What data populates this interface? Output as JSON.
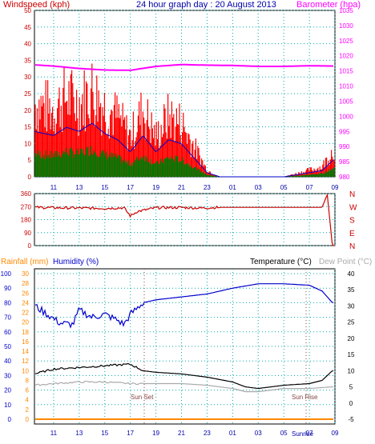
{
  "header": {
    "windspeed_label": "Windspeed (kph)",
    "title": "24 hour graph day : 20 August 2013",
    "barometer_label": "Barometer (hpa)"
  },
  "lower_header": {
    "rainfall_label": "Rainfall (mm)",
    "humidity_label": "Humidity (%)",
    "temperature_label": "Temperature (°C)",
    "dewpoint_label": "Dew Point (°C)"
  },
  "annotations": {
    "sunset": "Sun Set",
    "sunrise": "Sun Rise",
    "sunrise_axis": "Sunrise"
  },
  "colors": {
    "windspeed": "#ff0000",
    "wind_avg": "#0000cc",
    "wind_green": "#007700",
    "barometer": "#ff00ff",
    "direction": "#cc0000",
    "rainfall": "#ff8800",
    "humidity": "#0000cc",
    "temperature": "#000000",
    "dewpoint": "#aaaaaa",
    "axis_left_top": "#cc0000",
    "axis_lower_left": "#ff8800",
    "axis_humidity": "#0000cc",
    "grid": "#00aaaa"
  },
  "chart_data": [
    {
      "type": "line",
      "name": "wind-barometer",
      "x_ticks": [
        "11",
        "13",
        "15",
        "17",
        "19",
        "21",
        "23",
        "01",
        "03",
        "05",
        "07",
        "09"
      ],
      "y_left_ticks": [
        "0",
        "5",
        "10",
        "15",
        "20",
        "25",
        "30",
        "35",
        "40",
        "45",
        "50"
      ],
      "y_right_ticks": [
        "980",
        "985",
        "990",
        "995",
        "1000",
        "1005",
        "1010",
        "1015",
        "1020",
        "1025",
        "1030",
        "1035"
      ],
      "ylim_left": [
        0,
        50
      ],
      "ylim_right": [
        980,
        1035
      ],
      "grid": true,
      "series": [
        {
          "name": "Windspeed (kph)",
          "x": [
            9.5,
            11,
            12,
            13,
            14,
            15,
            16,
            17,
            18,
            19,
            20,
            21,
            22,
            23,
            24,
            25,
            26,
            27,
            28,
            29,
            30,
            31,
            32,
            32.5,
            33
          ],
          "y": [
            22,
            20,
            24,
            22,
            26,
            21,
            18,
            12,
            20,
            12,
            18,
            16,
            9,
            2,
            0,
            0,
            0,
            0,
            0,
            0,
            1,
            2,
            3,
            6,
            9
          ]
        },
        {
          "name": "Barometer (hpa)",
          "x": [
            9.5,
            11,
            13,
            15,
            17,
            19,
            21,
            23,
            25,
            27,
            29,
            31,
            33
          ],
          "y": [
            1017,
            1016.6,
            1015.8,
            1015.3,
            1015.2,
            1016.5,
            1017.1,
            1016.9,
            1016.8,
            1016.5,
            1016.5,
            1016.7,
            1016.6
          ]
        }
      ]
    },
    {
      "type": "line",
      "name": "wind-direction",
      "y_ticks": [
        "0",
        "90",
        "180",
        "270",
        "360"
      ],
      "compass": [
        "N",
        "W",
        "S",
        "E",
        "N"
      ],
      "ylim": [
        0,
        360
      ],
      "series": [
        {
          "name": "direction",
          "x": [
            9.5,
            11,
            13,
            15,
            16.5,
            17,
            17.5,
            19,
            21,
            22.5,
            24,
            26,
            28,
            30,
            32,
            32.4,
            32.8
          ],
          "y": [
            265,
            262,
            260,
            258,
            262,
            205,
            235,
            262,
            264,
            260,
            265,
            265,
            265,
            265,
            265,
            355,
            0
          ]
        }
      ]
    },
    {
      "type": "line",
      "name": "temp-humidity-rain",
      "x_ticks": [
        "11",
        "13",
        "15",
        "17",
        "19",
        "21",
        "23",
        "01",
        "03",
        "05",
        "07",
        "09"
      ],
      "y_humidity_ticks": [
        "0",
        "10",
        "20",
        "30",
        "40",
        "50",
        "60",
        "70",
        "80",
        "90",
        "100"
      ],
      "y_rain_ticks": [
        "0",
        "2",
        "4",
        "6",
        "8",
        "10",
        "12",
        "14",
        "16",
        "18",
        "20",
        "22",
        "24",
        "26",
        "28",
        "30"
      ],
      "y_temp_ticks": [
        "-5",
        "0",
        "5",
        "10",
        "15",
        "20",
        "25",
        "30",
        "35",
        "40"
      ],
      "humidity_ylim": [
        0,
        100
      ],
      "rain_ylim": [
        0,
        30
      ],
      "temp_ylim": [
        -5,
        40
      ],
      "grid": true,
      "series": [
        {
          "name": "Humidity (%)",
          "x": [
            9.5,
            10.5,
            11.5,
            12.5,
            13,
            14,
            15,
            16,
            16.5,
            17,
            18,
            19,
            21,
            23,
            25,
            27,
            29,
            31,
            32,
            32.8
          ],
          "y": [
            78,
            72,
            66,
            65,
            75,
            70,
            72,
            68,
            65,
            72,
            80,
            82,
            84,
            86,
            90,
            93,
            93,
            92,
            88,
            80
          ]
        },
        {
          "name": "Temperature (°C)",
          "x": [
            9.5,
            11,
            13,
            15,
            17,
            18,
            19,
            21,
            23,
            25,
            26,
            27,
            28,
            29,
            31,
            32,
            32.8
          ],
          "y": [
            9,
            10.5,
            11,
            11.5,
            12,
            10,
            9.5,
            9,
            8,
            6.5,
            5,
            4.5,
            5,
            5.5,
            6,
            7,
            10
          ]
        },
        {
          "name": "Dew Point (°C)",
          "x": [
            9.5,
            11,
            13,
            15,
            17,
            19,
            21,
            23,
            25,
            26,
            27,
            28,
            29,
            31,
            32.8
          ],
          "y": [
            5.5,
            6,
            6.5,
            6.5,
            6,
            6,
            6,
            5.5,
            4.5,
            3.5,
            3.5,
            4,
            4.5,
            4.5,
            5
          ]
        },
        {
          "name": "Rainfall (mm)",
          "x": [
            9.5,
            32.8
          ],
          "y": [
            0,
            0
          ]
        }
      ]
    }
  ]
}
